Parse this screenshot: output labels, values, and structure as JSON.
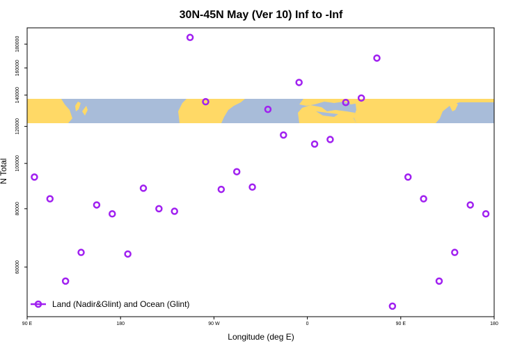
{
  "chart_data": {
    "type": "scatter",
    "title": "30N-45N May (Ver 10)   Inf to -Inf",
    "xlabel": "Longitude (deg E)",
    "ylabel": "N Total",
    "x_ticks": [
      {
        "value": 90,
        "label": "90 E"
      },
      {
        "value": 180,
        "label": "180"
      },
      {
        "value": 270,
        "label": "90 W"
      },
      {
        "value": 360,
        "label": "0"
      },
      {
        "value": 450,
        "label": "90 E"
      },
      {
        "value": 540,
        "label": "180"
      }
    ],
    "y_ticks": [
      60000,
      80000,
      100000,
      120000,
      140000,
      160000,
      180000
    ],
    "xlim": [
      90,
      540
    ],
    "ylim": [
      47000,
      195000
    ],
    "y_scale": "log",
    "legend": {
      "label": "Land (Nadir&Glint) and Ocean (Glint)",
      "position": "bottom-left"
    },
    "series": [
      {
        "name": "Land (Nadir&Glint) and Ocean (Glint)",
        "color": "#a020f0",
        "x": [
          97,
          112,
          127,
          142,
          157,
          172,
          187,
          202,
          217,
          232,
          247,
          262,
          277,
          292,
          307,
          322,
          337,
          352,
          367,
          382,
          397,
          412,
          427,
          442,
          457,
          472,
          487,
          502,
          517,
          532
        ],
        "y": [
          93500,
          84000,
          56000,
          64500,
          81500,
          78000,
          64000,
          88500,
          80000,
          79000,
          186000,
          135500,
          88000,
          96000,
          89000,
          130500,
          115000,
          149000,
          110000,
          112500,
          135000,
          138000,
          168000,
          49500,
          93500,
          84000,
          56000,
          64500,
          81500,
          78000
        ]
      }
    ],
    "background_map": {
      "lat_range": "30N-45N",
      "land_color": "#ffd966",
      "ocean_color": "#a8bcd9"
    }
  }
}
